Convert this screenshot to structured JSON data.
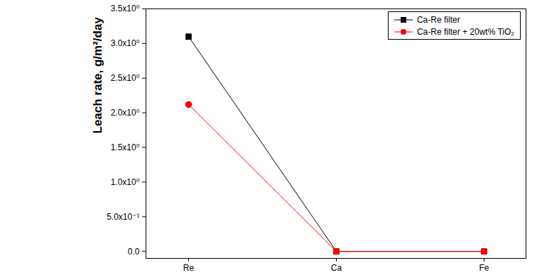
{
  "chart_data": {
    "type": "line",
    "ylabel": "Leach rate, g/m²/day",
    "categories": [
      "Re",
      "Ca",
      "Fe"
    ],
    "series": [
      {
        "name": "Ca-Re filter",
        "color": "#000000",
        "marker": "square",
        "values": [
          3.1,
          0,
          0
        ]
      },
      {
        "name": "Ca-Re filter + 20wt% TiO₂",
        "color": "#ff0000",
        "marker": "circle",
        "values": [
          2.12,
          0,
          0
        ]
      }
    ],
    "ylim": [
      -0.1,
      3.5
    ],
    "yticks": [
      {
        "value": 0,
        "label": "0.0"
      },
      {
        "value": 0.5,
        "label": "5.0x10⁻¹"
      },
      {
        "value": 1.0,
        "label": "1.0x10⁰"
      },
      {
        "value": 1.5,
        "label": "1.5x10⁰"
      },
      {
        "value": 2.0,
        "label": "2.0x10⁰"
      },
      {
        "value": 2.5,
        "label": "2.5x10⁰"
      },
      {
        "value": 3.0,
        "label": "3.0x10⁰"
      },
      {
        "value": 3.5,
        "label": "3.5x10⁰"
      }
    ],
    "legend": "upper right",
    "grid": false
  }
}
